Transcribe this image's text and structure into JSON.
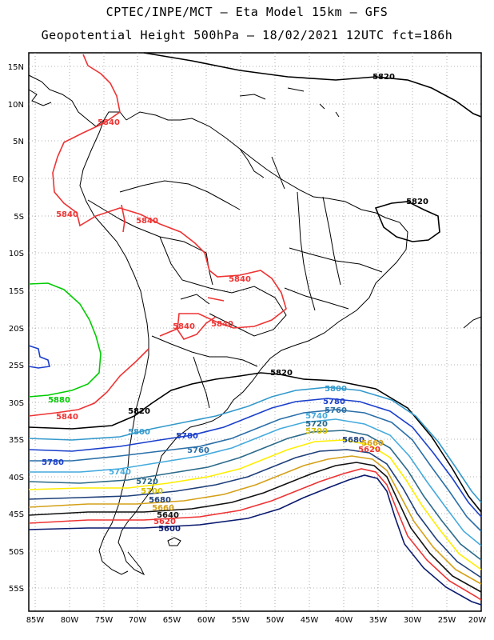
{
  "header": {
    "line1": "CPTEC/INPE/MCT –  Eta Model 15km – GFS",
    "line2": "Geopotential Height 500hPa – 18/02/2021 12UTC fct=186h"
  },
  "axes": {
    "lat_labels": [
      "15N",
      "10N",
      "5N",
      "EQ",
      "5S",
      "10S",
      "15S",
      "20S",
      "25S",
      "30S",
      "35S",
      "40S",
      "45S",
      "50S",
      "55S"
    ],
    "lon_labels": [
      "85W",
      "80W",
      "75W",
      "70W",
      "65W",
      "60W",
      "55W",
      "50W",
      "45W",
      "40W",
      "35W",
      "30W",
      "25W",
      "20W"
    ],
    "lat_range": [
      -58,
      16
    ],
    "lon_range": [
      -86,
      -20
    ]
  },
  "contours": [
    {
      "value": "5880",
      "color": "#00cc00"
    },
    {
      "value": "5840",
      "color": "#ee3333"
    },
    {
      "value": "5820",
      "color": "#000000"
    },
    {
      "value": "5800",
      "color": "#3399cc"
    },
    {
      "value": "5780",
      "color": "#1a3fcc"
    },
    {
      "value": "5760",
      "color": "#2a6fa8"
    },
    {
      "value": "5740",
      "color": "#44aadd"
    },
    {
      "value": "5720",
      "color": "#2b6a8a"
    },
    {
      "value": "5700",
      "color": "#ffee00"
    },
    {
      "value": "5680",
      "color": "#1e3f7a"
    },
    {
      "value": "5660",
      "color": "#d4a017"
    },
    {
      "value": "5640",
      "color": "#111111"
    },
    {
      "value": "5620",
      "color": "#ee3333"
    },
    {
      "value": "5600",
      "color": "#0a1a6e"
    }
  ]
}
